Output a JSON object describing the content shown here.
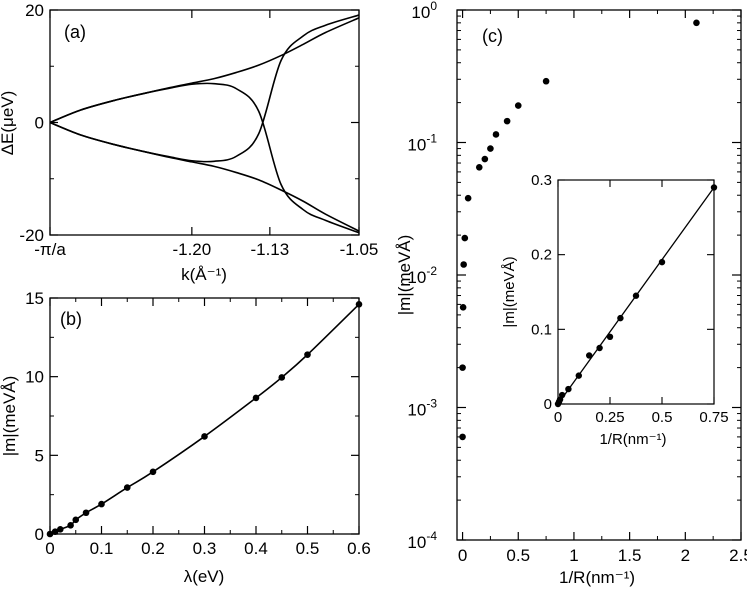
{
  "chart_data": [
    {
      "id": "a",
      "type": "line",
      "panel_label": "(a)",
      "xlabel": "k(Å⁻¹)",
      "ylabel": "ΔE(μeV)",
      "xlim": [
        -1.3273,
        -1.05
      ],
      "ylim": [
        -20,
        20
      ],
      "x_ticks": [
        {
          "value": -1.3273,
          "label": "-π/a"
        },
        {
          "value": -1.2,
          "label": "-1.20"
        },
        {
          "value": -1.13,
          "label": "-1.13"
        },
        {
          "value": -1.05,
          "label": "-1.05"
        }
      ],
      "y_ticks": [
        {
          "value": -20,
          "label": "-20"
        },
        {
          "value": 0,
          "label": "0"
        },
        {
          "value": 20,
          "label": "20"
        }
      ],
      "series": [
        {
          "x": [
            -1.3273,
            -1.3,
            -1.27,
            -1.24,
            -1.22,
            -1.2,
            -1.18,
            -1.16,
            -1.14,
            -1.12,
            -1.1,
            -1.08,
            -1.05
          ],
          "y": [
            0,
            2.2,
            3.9,
            5.3,
            6.2,
            7.0,
            7.8,
            8.9,
            10.2,
            11.9,
            13.9,
            16.0,
            18.6
          ]
        },
        {
          "x": [
            -1.3273,
            -1.3,
            -1.27,
            -1.24,
            -1.22,
            -1.2,
            -1.18,
            -1.16,
            -1.14,
            -1.12,
            -1.1,
            -1.08,
            -1.05
          ],
          "y": [
            0,
            2.2,
            3.9,
            5.3,
            6.1,
            6.8,
            6.9,
            6.0,
            2.0,
            -11.0,
            -15.5,
            -17.4,
            -19.6
          ]
        },
        {
          "x": [
            -1.3273,
            -1.3,
            -1.27,
            -1.24,
            -1.22,
            -1.2,
            -1.18,
            -1.16,
            -1.14,
            -1.12,
            -1.1,
            -1.08,
            -1.05
          ],
          "y": [
            0,
            -2.2,
            -3.9,
            -5.3,
            -6.1,
            -6.8,
            -6.9,
            -6.0,
            -2.0,
            11.0,
            15.4,
            17.3,
            19.1
          ]
        },
        {
          "x": [
            -1.3273,
            -1.3,
            -1.27,
            -1.24,
            -1.22,
            -1.2,
            -1.18,
            -1.16,
            -1.14,
            -1.12,
            -1.1,
            -1.08,
            -1.05
          ],
          "y": [
            0,
            -2.2,
            -3.9,
            -5.3,
            -6.2,
            -7.0,
            -7.8,
            -8.9,
            -10.2,
            -12.0,
            -14.0,
            -16.3,
            -19.3
          ]
        }
      ]
    },
    {
      "id": "b",
      "type": "line",
      "panel_label": "(b)",
      "xlabel": "λ(eV)",
      "ylabel": "|m|(meVÅ)",
      "xlim": [
        0,
        0.6
      ],
      "ylim": [
        0,
        15
      ],
      "x_ticks": [
        "0",
        "0.1",
        "0.2",
        "0.3",
        "0.4",
        "0.5",
        "0.6"
      ],
      "y_ticks": [
        "0",
        "5",
        "10",
        "15"
      ],
      "points": {
        "x": [
          0,
          0.01,
          0.02,
          0.04,
          0.05,
          0.07,
          0.1,
          0.15,
          0.2,
          0.3,
          0.4,
          0.45,
          0.5,
          0.6
        ],
        "y": [
          0,
          0.15,
          0.3,
          0.55,
          0.9,
          1.35,
          1.9,
          2.95,
          3.95,
          6.2,
          8.65,
          9.95,
          11.4,
          14.6
        ]
      }
    },
    {
      "id": "c",
      "type": "scatter",
      "panel_label": "(c)",
      "xlabel": "1/R(nm⁻¹)",
      "ylabel": "|m|(meVÅ)",
      "xlim": [
        -0.05,
        2.5
      ],
      "ylim": [
        0.0001,
        1
      ],
      "yscale": "log",
      "x_ticks": [
        "0",
        "0.5",
        "1",
        "1.5",
        "2",
        "2.5"
      ],
      "y_ticks": [
        {
          "value": 0.0001,
          "base": "10",
          "exp": "-4"
        },
        {
          "value": 0.001,
          "base": "10",
          "exp": "-3"
        },
        {
          "value": 0.01,
          "base": "10",
          "exp": "-2"
        },
        {
          "value": 0.1,
          "base": "10",
          "exp": "-1"
        },
        {
          "value": 1,
          "base": "10",
          "exp": "0"
        }
      ],
      "points": {
        "x": [
          0.0,
          0.0,
          0.005,
          0.01,
          0.02,
          0.05,
          0.15,
          0.2,
          0.25,
          0.3,
          0.4,
          0.5,
          0.75,
          2.1
        ],
        "y": [
          0.0006,
          0.002,
          0.0057,
          0.012,
          0.019,
          0.038,
          0.065,
          0.075,
          0.09,
          0.115,
          0.145,
          0.19,
          0.29,
          0.8
        ]
      }
    },
    {
      "id": "c-inset",
      "type": "line",
      "xlabel": "1/R(nm⁻¹)",
      "ylabel": "|m|(meVÅ)",
      "xlim": [
        0,
        0.75
      ],
      "ylim": [
        0,
        0.3
      ],
      "x_ticks": [
        "0",
        "0.25",
        "0.5",
        "0.75"
      ],
      "y_ticks": [
        "0",
        "0.1",
        "0.2",
        "0.3"
      ],
      "points": {
        "x": [
          0,
          0.005,
          0.01,
          0.02,
          0.05,
          0.1,
          0.15,
          0.2,
          0.25,
          0.3,
          0.375,
          0.5,
          0.75
        ],
        "y": [
          0,
          0.003,
          0.006,
          0.012,
          0.02,
          0.038,
          0.065,
          0.075,
          0.09,
          0.115,
          0.145,
          0.19,
          0.29
        ]
      }
    }
  ]
}
